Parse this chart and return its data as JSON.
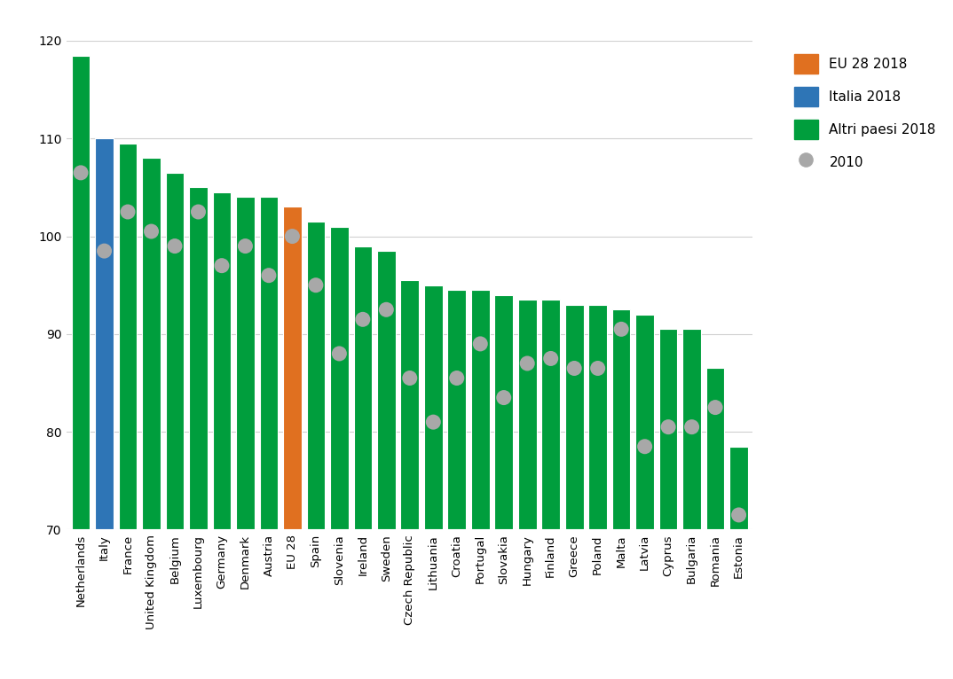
{
  "categories": [
    "Netherlands",
    "Italy",
    "France",
    "United Kingdom",
    "Belgium",
    "Luxembourg",
    "Germany",
    "Denmark",
    "Austria",
    "EU 28",
    "Spain",
    "Slovenia",
    "Ireland",
    "Sweden",
    "Czech Republic",
    "Lithuania",
    "Croatia",
    "Portugal",
    "Slovakia",
    "Hungary",
    "Finland",
    "Greece",
    "Poland",
    "Malta",
    "Latvia",
    "Cyprus",
    "Bulgaria",
    "Romania",
    "Estonia"
  ],
  "values_2018": [
    118.5,
    110.0,
    109.5,
    108.0,
    106.5,
    105.0,
    104.5,
    104.0,
    104.0,
    103.0,
    101.5,
    101.0,
    99.0,
    98.5,
    95.5,
    95.0,
    94.5,
    94.5,
    94.0,
    93.5,
    93.5,
    93.0,
    93.0,
    92.5,
    92.0,
    90.5,
    90.5,
    86.5,
    78.5
  ],
  "values_2010": [
    106.5,
    98.5,
    102.5,
    100.5,
    99.0,
    102.5,
    97.0,
    99.0,
    96.0,
    100.0,
    95.0,
    88.0,
    91.5,
    92.5,
    85.5,
    81.0,
    85.5,
    89.0,
    83.5,
    87.0,
    87.5,
    86.5,
    86.5,
    90.5,
    78.5,
    80.5,
    80.5,
    82.5,
    71.5
  ],
  "bar_type": [
    "green",
    "blue",
    "green",
    "green",
    "green",
    "green",
    "green",
    "green",
    "green",
    "orange",
    "green",
    "green",
    "green",
    "green",
    "green",
    "green",
    "green",
    "green",
    "green",
    "green",
    "green",
    "green",
    "green",
    "green",
    "green",
    "green",
    "green",
    "green",
    "green"
  ],
  "color_green": "#009E3D",
  "color_blue": "#2E75B6",
  "color_orange": "#E07020",
  "color_dot": "#A8A8A8",
  "ylim_min": 70,
  "ylim_max": 120,
  "yticks": [
    70,
    80,
    90,
    100,
    110,
    120
  ],
  "legend_labels": [
    "EU 28 2018",
    "Italia 2018",
    "Altri paesi 2018",
    "2010"
  ],
  "background_color": "#FFFFFF",
  "grid_color": "#D0D0D0"
}
